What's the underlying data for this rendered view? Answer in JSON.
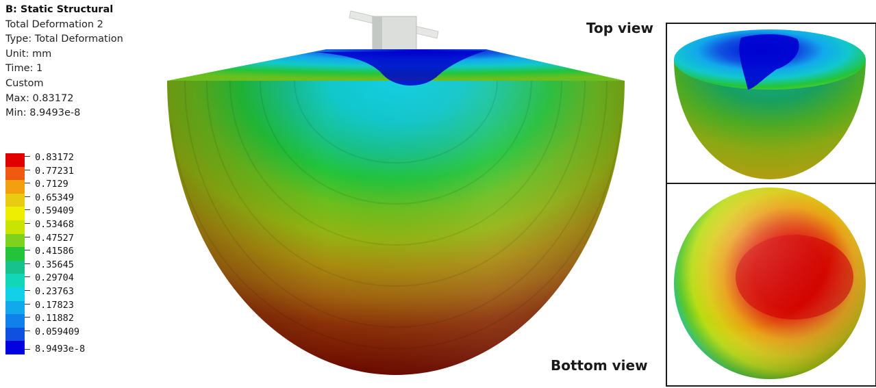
{
  "info": {
    "title": "B: Static Structural",
    "lines": [
      "Total Deformation 2",
      "Type: Total Deformation",
      "Unit: mm",
      "Time: 1",
      "Custom",
      "Max: 0.83172",
      "Min: 8.9493e-8"
    ]
  },
  "legend": {
    "labels": [
      "0.83172",
      "0.77231",
      "0.7129",
      "0.65349",
      "0.59409",
      "0.53468",
      "0.47527",
      "0.41586",
      "0.35645",
      "0.29704",
      "0.23763",
      "0.17823",
      "0.11882",
      "0.059409",
      "8.9493e-8"
    ],
    "colors": [
      "#e00000",
      "#f05a10",
      "#f2a010",
      "#e8cc12",
      "#eeee00",
      "#c8e400",
      "#7ed21e",
      "#23c43a",
      "#18c28c",
      "#12d6b8",
      "#12d0e6",
      "#12a8ec",
      "#1080ec",
      "#1050e0",
      "#0000e0"
    ]
  },
  "views": {
    "top_label": "Top view",
    "bottom_label": "Bottom view"
  }
}
